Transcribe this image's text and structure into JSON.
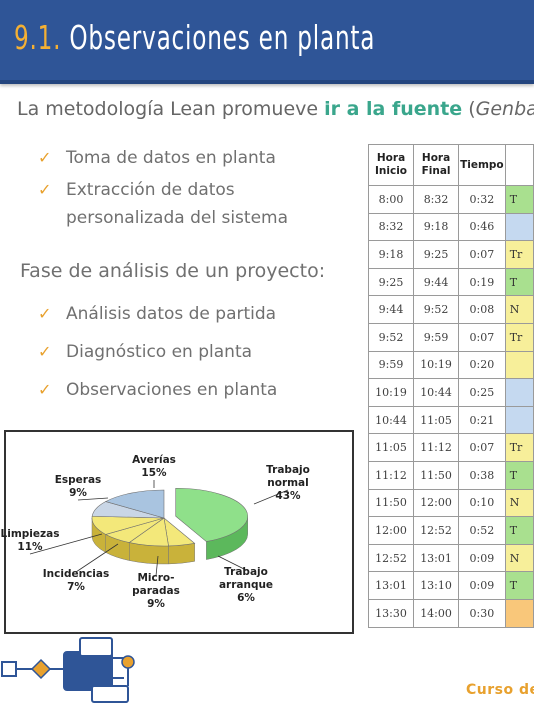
{
  "header": {
    "number": "9.1.",
    "title": "Observaciones en planta"
  },
  "intro": {
    "prefix": "La metodología Lean promueve ",
    "highlight": "ir a la fuente",
    "paren_open": " (",
    "italic": "Genba"
  },
  "bullets_top": [
    "Toma de datos en planta",
    "Extracción de datos personalizada del sistema"
  ],
  "phase_heading": "Fase de análisis de un proyecto:",
  "bullets_phase": [
    "Análisis datos de partida",
    "Diagnóstico en planta",
    "Observaciones en planta"
  ],
  "colors": {
    "header_bg": "#2f5597",
    "number": "#f4b034",
    "highlight": "#3aa68c",
    "check": "#e8a12e"
  },
  "chart_data": {
    "type": "pie",
    "labels": [
      "Trabajo normal",
      "Trabajo arranque",
      "Micro-paradas",
      "Incidencias",
      "Limpiezas",
      "Esperas",
      "Averías"
    ],
    "values": [
      43,
      6,
      9,
      7,
      11,
      9,
      15
    ],
    "label_texts": [
      [
        "Trabajo",
        "normal",
        "43%"
      ],
      [
        "Trabajo",
        "arranque",
        "6%"
      ],
      [
        "Micro-",
        "paradas",
        "9%"
      ],
      [
        "Incidencias",
        "7%"
      ],
      [
        "Limpiezas",
        "11%"
      ],
      [
        "Esperas",
        "9%"
      ],
      [
        "Averías",
        "15%"
      ]
    ],
    "colors": [
      "#8fe08a",
      "#f3e87a",
      "#f3e87a",
      "#f3e87a",
      "#f3e87a",
      "#c9d6e6",
      "#a9c4e0"
    ],
    "edge_colors": [
      "#5cb85c",
      "#c9b23a",
      "#c9b23a",
      "#c9b23a",
      "#c9b23a",
      "#8da6c2",
      "#7f9fc4"
    ],
    "exploded": [
      true,
      false,
      false,
      false,
      false,
      false,
      false
    ]
  },
  "table": {
    "headers": [
      "Hora\nInicio",
      "Hora\nFinal",
      "Tiempo",
      ""
    ],
    "rows": [
      {
        "start": "8:00",
        "end": "8:32",
        "time": "0:32",
        "activity": "T",
        "color": "#a9e08f"
      },
      {
        "start": "8:32",
        "end": "9:18",
        "time": "0:46",
        "activity": "",
        "color": "#c5d9f0"
      },
      {
        "start": "9:18",
        "end": "9:25",
        "time": "0:07",
        "activity": "Tr",
        "color": "#f7ef9a"
      },
      {
        "start": "9:25",
        "end": "9:44",
        "time": "0:19",
        "activity": "T",
        "color": "#a9e08f"
      },
      {
        "start": "9:44",
        "end": "9:52",
        "time": "0:08",
        "activity": "N",
        "color": "#f7ef9a"
      },
      {
        "start": "9:52",
        "end": "9:59",
        "time": "0:07",
        "activity": "Tr",
        "color": "#f7ef9a"
      },
      {
        "start": "9:59",
        "end": "10:19",
        "time": "0:20",
        "activity": "",
        "color": "#f7ef9a"
      },
      {
        "start": "10:19",
        "end": "10:44",
        "time": "0:25",
        "activity": "",
        "color": "#c5d9f0"
      },
      {
        "start": "10:44",
        "end": "11:05",
        "time": "0:21",
        "activity": "",
        "color": "#c5d9f0"
      },
      {
        "start": "11:05",
        "end": "11:12",
        "time": "0:07",
        "activity": "Tr",
        "color": "#f7ef9a"
      },
      {
        "start": "11:12",
        "end": "11:50",
        "time": "0:38",
        "activity": "T",
        "color": "#a9e08f"
      },
      {
        "start": "11:50",
        "end": "12:00",
        "time": "0:10",
        "activity": "N",
        "color": "#f7ef9a"
      },
      {
        "start": "12:00",
        "end": "12:52",
        "time": "0:52",
        "activity": "T",
        "color": "#a9e08f"
      },
      {
        "start": "12:52",
        "end": "13:01",
        "time": "0:09",
        "activity": "N",
        "color": "#f7ef9a"
      },
      {
        "start": "13:01",
        "end": "13:10",
        "time": "0:09",
        "activity": "T",
        "color": "#a9e08f"
      },
      {
        "start": "13:30",
        "end": "14:00",
        "time": "0:30",
        "activity": "",
        "color": "#f9c77a"
      }
    ]
  },
  "footer": {
    "text": "Curso de"
  }
}
